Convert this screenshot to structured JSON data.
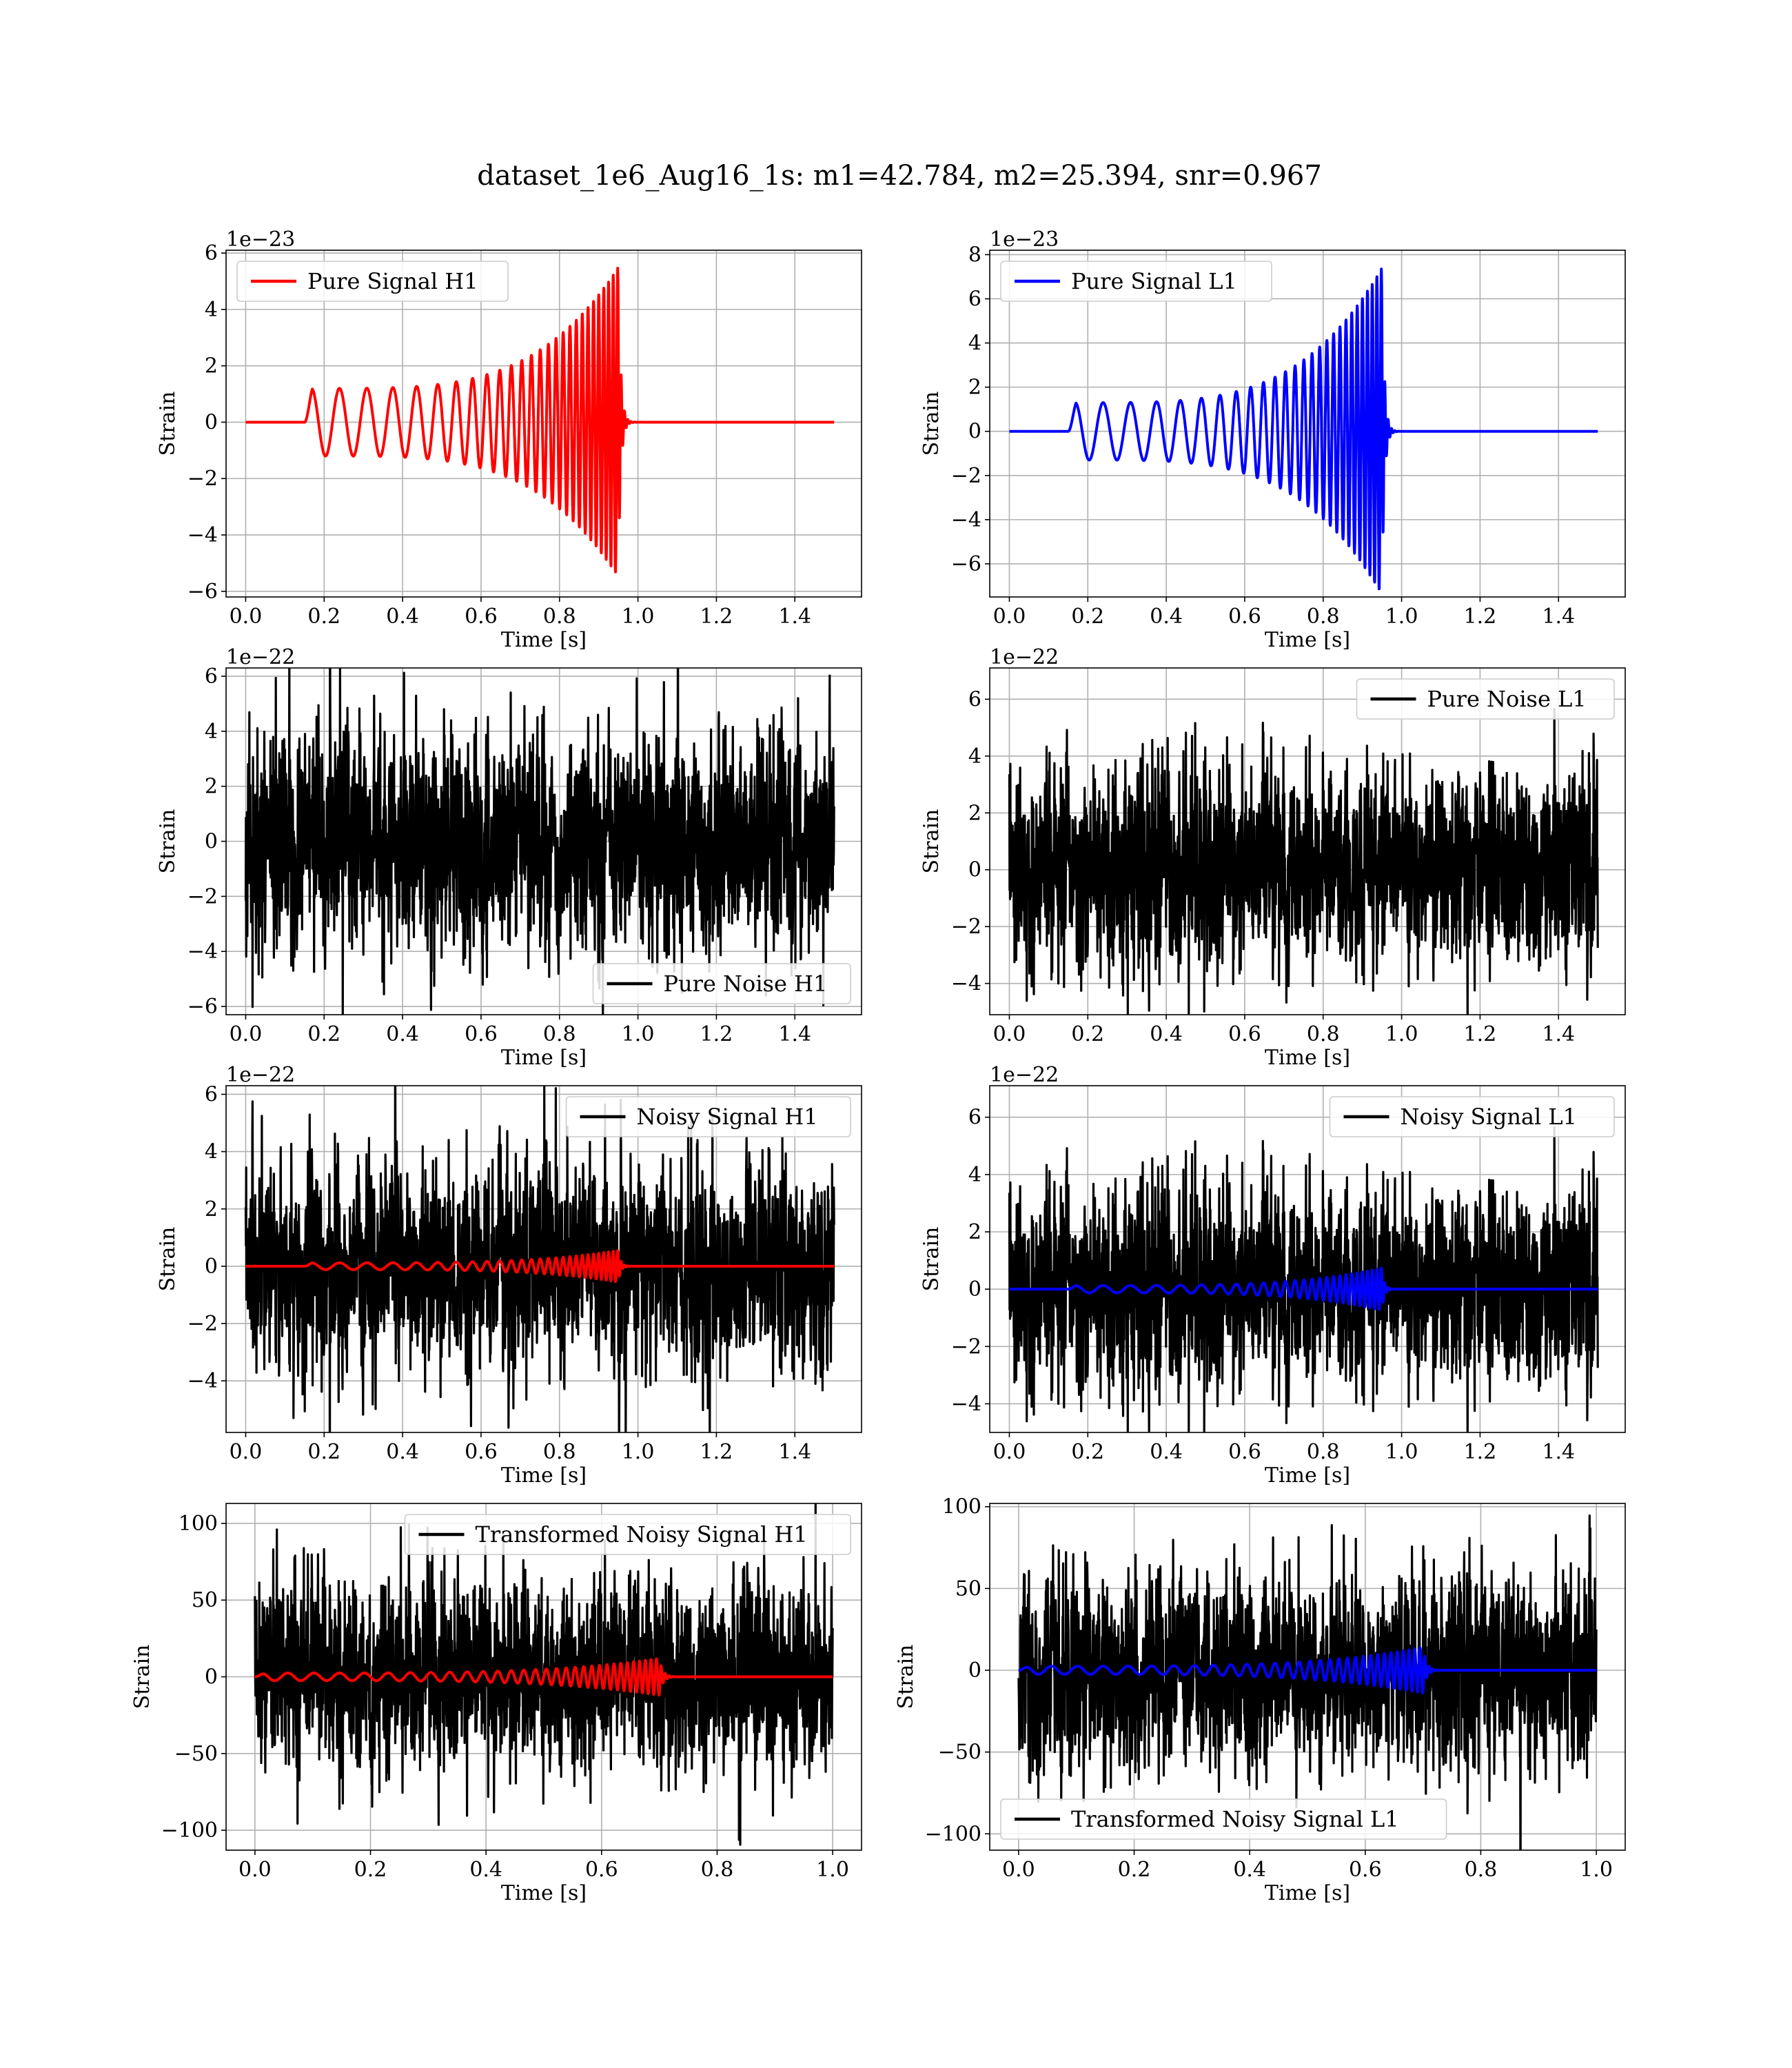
{
  "figure": {
    "title": "dataset_1e6_Aug16_1s: m1=42.784, m2=25.394, snr=0.967"
  },
  "colors": {
    "h1_signal": "#ff0000",
    "l1_signal": "#0000ff",
    "noise": "#000000",
    "grid": "#b0b0b0"
  },
  "chart_data": [
    {
      "id": "pure-signal-h1",
      "type": "line",
      "xlabel": "Time [s]",
      "ylabel": "Strain",
      "offset_label": "1e−23",
      "xlim": [
        -0.05,
        1.57
      ],
      "ylim": [
        -6.2,
        6.1
      ],
      "xticks": [
        0.0,
        0.2,
        0.4,
        0.6,
        0.8,
        1.0,
        1.2,
        1.4
      ],
      "xtick_labels": [
        "0.0",
        "0.2",
        "0.4",
        "0.6",
        "0.8",
        "1.0",
        "1.2",
        "1.4"
      ],
      "yticks": [
        -6,
        -4,
        -2,
        0,
        2,
        4,
        6
      ],
      "ytick_labels": [
        "−6",
        "−4",
        "−2",
        "0",
        "2",
        "4",
        "6"
      ],
      "grid": true,
      "legend_position": "upper-left",
      "series": [
        {
          "name": "Pure Signal H1",
          "kind": "chirp",
          "color": "#ff0000",
          "t_start": 0.15,
          "t_merge": 0.95,
          "t_end": 1.5,
          "x_max": 1.5,
          "amp_start": 1.2,
          "amp_peak": 5.5,
          "freq_start": 14,
          "freq_merge": 90
        }
      ]
    },
    {
      "id": "pure-signal-l1",
      "type": "line",
      "xlabel": "Time [s]",
      "ylabel": "Strain",
      "offset_label": "1e−23",
      "xlim": [
        -0.05,
        1.57
      ],
      "ylim": [
        -7.5,
        8.2
      ],
      "xticks": [
        0.0,
        0.2,
        0.4,
        0.6,
        0.8,
        1.0,
        1.2,
        1.4
      ],
      "xtick_labels": [
        "0.0",
        "0.2",
        "0.4",
        "0.6",
        "0.8",
        "1.0",
        "1.2",
        "1.4"
      ],
      "yticks": [
        -6,
        -4,
        -2,
        0,
        2,
        4,
        6,
        8
      ],
      "ytick_labels": [
        "−6",
        "−4",
        "−2",
        "0",
        "2",
        "4",
        "6",
        "8"
      ],
      "grid": true,
      "legend_position": "upper-left",
      "series": [
        {
          "name": "Pure Signal L1",
          "kind": "chirp",
          "color": "#0000ff",
          "t_start": 0.15,
          "t_merge": 0.95,
          "t_end": 1.5,
          "x_max": 1.5,
          "amp_start": 1.3,
          "amp_peak": 7.4,
          "freq_start": 14,
          "freq_merge": 90
        }
      ]
    },
    {
      "id": "pure-noise-h1",
      "type": "line",
      "xlabel": "Time [s]",
      "ylabel": "Strain",
      "offset_label": "1e−22",
      "xlim": [
        -0.05,
        1.57
      ],
      "ylim": [
        -6.3,
        6.3
      ],
      "xticks": [
        0.0,
        0.2,
        0.4,
        0.6,
        0.8,
        1.0,
        1.2,
        1.4
      ],
      "xtick_labels": [
        "0.0",
        "0.2",
        "0.4",
        "0.6",
        "0.8",
        "1.0",
        "1.2",
        "1.4"
      ],
      "yticks": [
        -6,
        -4,
        -2,
        0,
        2,
        4,
        6
      ],
      "ytick_labels": [
        "−6",
        "−4",
        "−2",
        "0",
        "2",
        "4",
        "6"
      ],
      "grid": true,
      "legend_position": "lower-right",
      "series": [
        {
          "name": "Pure Noise H1",
          "kind": "noise",
          "color": "#000000",
          "x_max": 1.5,
          "sigma": 1.9,
          "seed": 11
        }
      ]
    },
    {
      "id": "pure-noise-l1",
      "type": "line",
      "xlabel": "Time [s]",
      "ylabel": "Strain",
      "offset_label": "1e−22",
      "xlim": [
        -0.05,
        1.57
      ],
      "ylim": [
        -5.1,
        7.1
      ],
      "xticks": [
        0.0,
        0.2,
        0.4,
        0.6,
        0.8,
        1.0,
        1.2,
        1.4
      ],
      "xtick_labels": [
        "0.0",
        "0.2",
        "0.4",
        "0.6",
        "0.8",
        "1.0",
        "1.2",
        "1.4"
      ],
      "yticks": [
        -4,
        -2,
        0,
        2,
        4,
        6
      ],
      "ytick_labels": [
        "−4",
        "−2",
        "0",
        "2",
        "4",
        "6"
      ],
      "grid": true,
      "legend_position": "upper-right",
      "series": [
        {
          "name": "Pure Noise L1",
          "kind": "noise",
          "color": "#000000",
          "x_max": 1.5,
          "sigma": 1.7,
          "seed": 23
        }
      ]
    },
    {
      "id": "noisy-signal-h1",
      "type": "line",
      "xlabel": "Time [s]",
      "ylabel": "Strain",
      "offset_label": "1e−22",
      "xlim": [
        -0.05,
        1.57
      ],
      "ylim": [
        -5.8,
        6.3
      ],
      "xticks": [
        0.0,
        0.2,
        0.4,
        0.6,
        0.8,
        1.0,
        1.2,
        1.4
      ],
      "xtick_labels": [
        "0.0",
        "0.2",
        "0.4",
        "0.6",
        "0.8",
        "1.0",
        "1.2",
        "1.4"
      ],
      "yticks": [
        -4,
        -2,
        0,
        2,
        4,
        6
      ],
      "ytick_labels": [
        "−4",
        "−2",
        "0",
        "2",
        "4",
        "6"
      ],
      "grid": true,
      "legend_position": "upper-right",
      "series": [
        {
          "name": "Noisy Signal H1",
          "kind": "noise",
          "color": "#000000",
          "x_max": 1.5,
          "sigma": 1.8,
          "seed": 37
        },
        {
          "kind": "chirp",
          "color": "#ff0000",
          "t_start": 0.15,
          "t_merge": 0.95,
          "t_end": 1.5,
          "x_max": 1.5,
          "amp_start": 0.12,
          "amp_peak": 0.55,
          "freq_start": 14,
          "freq_merge": 90
        }
      ]
    },
    {
      "id": "noisy-signal-l1",
      "type": "line",
      "xlabel": "Time [s]",
      "ylabel": "Strain",
      "offset_label": "1e−22",
      "xlim": [
        -0.05,
        1.57
      ],
      "ylim": [
        -5.0,
        7.1
      ],
      "xticks": [
        0.0,
        0.2,
        0.4,
        0.6,
        0.8,
        1.0,
        1.2,
        1.4
      ],
      "xtick_labels": [
        "0.0",
        "0.2",
        "0.4",
        "0.6",
        "0.8",
        "1.0",
        "1.2",
        "1.4"
      ],
      "yticks": [
        -4,
        -2,
        0,
        2,
        4,
        6
      ],
      "ytick_labels": [
        "−4",
        "−2",
        "0",
        "2",
        "4",
        "6"
      ],
      "grid": true,
      "legend_position": "upper-right",
      "series": [
        {
          "name": "Noisy Signal L1",
          "kind": "noise",
          "color": "#000000",
          "x_max": 1.5,
          "sigma": 1.7,
          "seed": 23
        },
        {
          "kind": "chirp",
          "color": "#0000ff",
          "t_start": 0.15,
          "t_merge": 0.95,
          "t_end": 1.5,
          "x_max": 1.5,
          "amp_start": 0.13,
          "amp_peak": 0.74,
          "freq_start": 14,
          "freq_merge": 90
        }
      ]
    },
    {
      "id": "transformed-noisy-signal-h1",
      "type": "line",
      "xlabel": "Time [s]",
      "ylabel": "Strain",
      "offset_label": "",
      "xlim": [
        -0.05,
        1.05
      ],
      "ylim": [
        -113,
        113
      ],
      "xticks": [
        0.0,
        0.2,
        0.4,
        0.6,
        0.8,
        1.0
      ],
      "xtick_labels": [
        "0.0",
        "0.2",
        "0.4",
        "0.6",
        "0.8",
        "1.0"
      ],
      "yticks": [
        -100,
        -50,
        0,
        50,
        100
      ],
      "ytick_labels": [
        "−100",
        "−50",
        "0",
        "50",
        "100"
      ],
      "grid": true,
      "legend_position": "upper-right",
      "series": [
        {
          "name": "Transformed Noisy Signal H1",
          "kind": "noise",
          "color": "#000000",
          "x_max": 1.0,
          "sigma": 30,
          "seed": 51
        },
        {
          "kind": "chirp",
          "color": "#ff0000",
          "t_start": 0.0,
          "t_merge": 0.7,
          "t_end": 1.0,
          "x_max": 1.0,
          "amp_start": 2.5,
          "amp_peak": 12,
          "freq_start": 22,
          "freq_merge": 110
        }
      ]
    },
    {
      "id": "transformed-noisy-signal-l1",
      "type": "line",
      "xlabel": "Time [s]",
      "ylabel": "Strain",
      "offset_label": "",
      "xlim": [
        -0.05,
        1.05
      ],
      "ylim": [
        -110,
        102
      ],
      "xticks": [
        0.0,
        0.2,
        0.4,
        0.6,
        0.8,
        1.0
      ],
      "xtick_labels": [
        "0.0",
        "0.2",
        "0.4",
        "0.6",
        "0.8",
        "1.0"
      ],
      "yticks": [
        -100,
        -50,
        0,
        50,
        100
      ],
      "ytick_labels": [
        "−100",
        "−50",
        "0",
        "50",
        "100"
      ],
      "grid": true,
      "legend_position": "lower-left",
      "series": [
        {
          "name": "Transformed Noisy Signal L1",
          "kind": "noise",
          "color": "#000000",
          "x_max": 1.0,
          "sigma": 28,
          "seed": 67
        },
        {
          "kind": "chirp",
          "color": "#0000ff",
          "t_start": 0.0,
          "t_merge": 0.7,
          "t_end": 1.0,
          "x_max": 1.0,
          "amp_start": 2.5,
          "amp_peak": 14,
          "freq_start": 22,
          "freq_merge": 110
        }
      ]
    }
  ]
}
